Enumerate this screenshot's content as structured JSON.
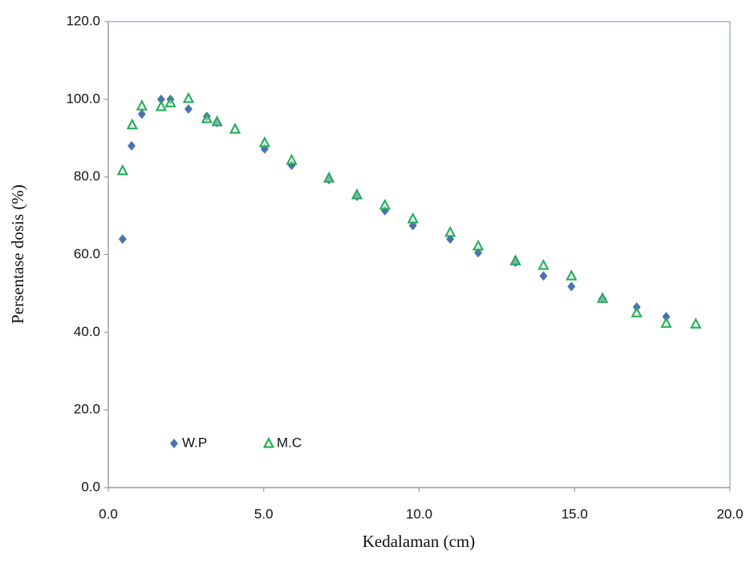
{
  "chart_data": {
    "type": "scatter",
    "xlabel": "Kedalaman (cm)",
    "ylabel": "Persentase dosis (%)",
    "xlim": [
      0,
      20
    ],
    "ylim": [
      0,
      120
    ],
    "xticks": [
      {
        "value": 0,
        "label": "0.0"
      },
      {
        "value": 5,
        "label": "5.0"
      },
      {
        "value": 10,
        "label": "10.0"
      },
      {
        "value": 15,
        "label": "15.0"
      },
      {
        "value": 20,
        "label": "20.0"
      }
    ],
    "yticks": [
      {
        "value": 0,
        "label": "0.0"
      },
      {
        "value": 20,
        "label": "20.0"
      },
      {
        "value": 40,
        "label": "40.0"
      },
      {
        "value": 60,
        "label": "60.0"
      },
      {
        "value": 80,
        "label": "80.0"
      },
      {
        "value": 100,
        "label": "100.0"
      },
      {
        "value": 120,
        "label": "120.0"
      }
    ],
    "legend": "lower left",
    "series": [
      {
        "name": "W.P",
        "color": "#4a72b0",
        "marker": "diamond",
        "x": [
          0.46,
          0.75,
          1.08,
          1.7,
          2.0,
          2.58,
          3.17,
          3.5,
          5.03,
          5.9,
          7.1,
          8.0,
          8.9,
          9.8,
          11.0,
          11.9,
          13.1,
          14.0,
          14.9,
          15.9,
          17.0,
          17.95
        ],
        "values": [
          64.0,
          88.0,
          96.2,
          100.0,
          100.0,
          97.5,
          95.6,
          94.0,
          87.2,
          83.0,
          79.3,
          75.0,
          71.3,
          67.5,
          64.0,
          60.5,
          58.0,
          54.5,
          51.8,
          48.7,
          46.5,
          44.0
        ]
      },
      {
        "name": "M.C",
        "color": "#22aa55",
        "marker": "triangle",
        "x": [
          0.46,
          0.77,
          1.08,
          1.7,
          2.0,
          2.58,
          3.17,
          3.5,
          4.08,
          5.03,
          5.9,
          7.1,
          8.0,
          8.9,
          9.8,
          11.0,
          11.9,
          13.1,
          14.0,
          14.9,
          15.9,
          17.0,
          17.95,
          18.9
        ],
        "values": [
          81.6,
          93.4,
          98.3,
          98.1,
          99.1,
          100.2,
          95.0,
          94.2,
          92.3,
          88.8,
          84.3,
          79.7,
          75.4,
          72.7,
          69.2,
          65.7,
          62.2,
          58.4,
          57.2,
          54.5,
          48.7,
          45.0,
          42.3,
          42.1
        ]
      }
    ]
  }
}
